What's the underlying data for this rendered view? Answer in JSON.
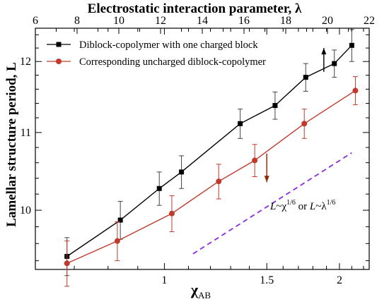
{
  "chart_data": {
    "type": "line",
    "title": "",
    "xlabel": "χ",
    "xlabel_sub": "AB",
    "ylabel": "Lamellar structure period, L",
    "top_xlabel": "Electrostatic interaction parameter, λ",
    "xlim": [
      0.6,
      2.25
    ],
    "ylim": [
      9.3,
      12.5
    ],
    "log_x": true,
    "log_y": true,
    "top_axis": {
      "xlim": [
        6,
        22
      ],
      "tick_labels": [
        "6",
        "8",
        "10",
        "12",
        "14",
        "16",
        "18",
        "20",
        "22"
      ]
    },
    "x_tick_labels": [
      "1",
      "1.5",
      "2"
    ],
    "y_tick_labels": [
      "10",
      "11",
      "12"
    ],
    "legend_position": "top-left",
    "series": [
      {
        "name": "Diblock-copolymer with one charged block",
        "color": "#000000",
        "marker": "square",
        "x": [
          0.68,
          0.84,
          0.98,
          1.07,
          1.35,
          1.55,
          1.75,
          1.96,
          2.1
        ],
        "y": [
          9.45,
          9.88,
          10.27,
          10.48,
          11.12,
          11.37,
          11.77,
          11.97,
          12.24
        ],
        "yerr": [
          0.22,
          0.23,
          0.21,
          0.21,
          0.2,
          0.19,
          0.2,
          0.2,
          0.24
        ]
      },
      {
        "name": "Corresponding uncharged diblock-copolymer",
        "color": "#c0392b",
        "marker": "circle",
        "x": [
          0.68,
          0.83,
          1.03,
          1.24,
          1.43,
          1.74,
          2.13
        ],
        "y": [
          9.37,
          9.63,
          9.96,
          10.36,
          10.63,
          11.12,
          11.58
        ],
        "yerr": [
          0.26,
          0.23,
          0.22,
          0.22,
          0.21,
          0.2,
          0.2
        ]
      }
    ],
    "reference_line": {
      "x": [
        1.12,
        2.1
      ],
      "y": [
        9.48,
        10.73
      ],
      "color": "#8a2be2",
      "style": "dashed"
    },
    "annotation": {
      "parts": [
        "L",
        "~χ",
        "1/6",
        " or ",
        "L",
        "~λ",
        "1/6"
      ]
    },
    "arrows": [
      {
        "x": 1.88,
        "y_from": 11.85,
        "y_to": 12.2,
        "color": "#000000"
      },
      {
        "x": 1.5,
        "y_from": 10.72,
        "y_to": 10.35,
        "color": "#8b2500"
      }
    ]
  }
}
